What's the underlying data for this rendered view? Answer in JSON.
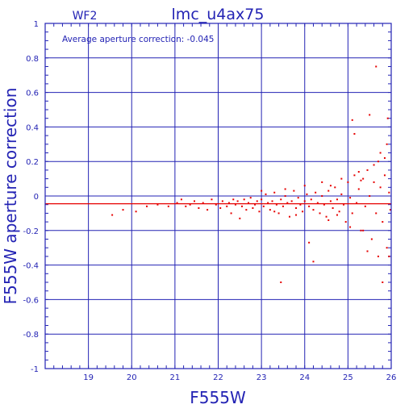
{
  "chart_data": {
    "type": "scatter",
    "panel_label": "WF2",
    "title": "lmc_u4ax75",
    "annotation": "Average aperture correction: -0.045",
    "xlabel": "F555W",
    "ylabel": "F555W aperture correction",
    "xlim": [
      18,
      26
    ],
    "ylim": [
      -1,
      1
    ],
    "x_ticks": [
      19,
      20,
      21,
      22,
      23,
      24,
      25,
      26
    ],
    "y_ticks": [
      -1,
      -0.8,
      -0.6,
      -0.4,
      -0.2,
      0,
      0.2,
      0.4,
      0.6,
      0.8,
      1
    ],
    "y_tick_labels": [
      "-1",
      "-0.8",
      "-0.6",
      "-0.4",
      "-0.2",
      "0",
      "0.2",
      "0.4",
      "0.6",
      "0.8",
      "1"
    ],
    "grid": true,
    "reference_line": {
      "y": -0.045,
      "label": "average"
    },
    "colors": {
      "axes": "#2323b4",
      "points": "#e60000",
      "reference_line": "#e60000",
      "background": "#ffffff"
    },
    "series": [
      {
        "points": [
          [
            19.55,
            -0.11
          ],
          [
            19.8,
            -0.08
          ],
          [
            20.1,
            -0.09
          ],
          [
            20.35,
            -0.06
          ],
          [
            20.6,
            -0.05
          ],
          [
            20.85,
            -0.06
          ],
          [
            21.05,
            -0.04
          ],
          [
            21.15,
            -0.02
          ],
          [
            21.25,
            -0.06
          ],
          [
            21.35,
            -0.05
          ],
          [
            21.45,
            -0.03
          ],
          [
            21.55,
            -0.07
          ],
          [
            21.65,
            -0.04
          ],
          [
            21.75,
            -0.08
          ],
          [
            21.85,
            -0.02
          ],
          [
            21.95,
            -0.05
          ],
          [
            22.05,
            -0.07
          ],
          [
            22.1,
            -0.03
          ],
          [
            22.2,
            -0.06
          ],
          [
            22.25,
            -0.04
          ],
          [
            22.3,
            -0.1
          ],
          [
            22.35,
            -0.02
          ],
          [
            22.4,
            -0.05
          ],
          [
            22.45,
            -0.03
          ],
          [
            22.5,
            -0.13
          ],
          [
            22.55,
            -0.06
          ],
          [
            22.6,
            -0.02
          ],
          [
            22.65,
            -0.08
          ],
          [
            22.7,
            -0.04
          ],
          [
            22.75,
            -0.01
          ],
          [
            22.8,
            -0.07
          ],
          [
            22.85,
            -0.05
          ],
          [
            22.9,
            -0.03
          ],
          [
            22.95,
            -0.09
          ],
          [
            23.0,
            -0.02
          ],
          [
            23.05,
            -0.06
          ],
          [
            23.1,
            0.01
          ],
          [
            23.15,
            -0.04
          ],
          [
            23.2,
            -0.08
          ],
          [
            23.25,
            -0.03
          ],
          [
            23.3,
            0.02
          ],
          [
            23.35,
            -0.05
          ],
          [
            23.4,
            -0.1
          ],
          [
            23.45,
            -0.02
          ],
          [
            23.5,
            -0.06
          ],
          [
            23.55,
            0.0
          ],
          [
            23.6,
            -0.04
          ],
          [
            23.65,
            -0.12
          ],
          [
            23.7,
            -0.03
          ],
          [
            23.75,
            0.03
          ],
          [
            23.8,
            -0.07
          ],
          [
            23.85,
            -0.01
          ],
          [
            23.9,
            -0.05
          ],
          [
            23.95,
            -0.09
          ],
          [
            24.0,
            -0.03
          ],
          [
            24.05,
            0.01
          ],
          [
            24.1,
            -0.06
          ],
          [
            24.15,
            -0.02
          ],
          [
            24.2,
            -0.08
          ],
          [
            24.25,
            0.02
          ],
          [
            24.3,
            -0.04
          ],
          [
            24.35,
            -0.1
          ],
          [
            24.4,
            0.0
          ],
          [
            24.45,
            -0.05
          ],
          [
            24.5,
            -0.12
          ],
          [
            24.55,
            0.03
          ],
          [
            24.6,
            -0.03
          ],
          [
            24.65,
            -0.07
          ],
          [
            24.7,
            0.05
          ],
          [
            24.75,
            -0.02
          ],
          [
            24.8,
            -0.09
          ],
          [
            24.85,
            0.01
          ],
          [
            24.9,
            -0.05
          ],
          [
            24.95,
            -0.15
          ],
          [
            25.0,
            0.08
          ],
          [
            25.05,
            -0.01
          ],
          [
            25.1,
            -0.1
          ],
          [
            25.15,
            0.12
          ],
          [
            25.2,
            -0.04
          ],
          [
            25.25,
            0.04
          ],
          [
            25.3,
            -0.2
          ],
          [
            25.35,
            0.1
          ],
          [
            25.4,
            -0.06
          ],
          [
            25.45,
            0.15
          ],
          [
            25.5,
            0.0
          ],
          [
            25.55,
            -0.25
          ],
          [
            25.6,
            0.08
          ],
          [
            25.65,
            -0.1
          ],
          [
            25.7,
            0.2
          ],
          [
            25.75,
            0.05
          ],
          [
            25.8,
            -0.15
          ],
          [
            25.85,
            0.12
          ],
          [
            25.9,
            -0.3
          ],
          [
            25.95,
            0.02
          ],
          [
            25.98,
            -0.08
          ],
          [
            23.45,
            -0.5
          ],
          [
            24.2,
            -0.38
          ],
          [
            24.1,
            -0.27
          ],
          [
            25.65,
            0.75
          ],
          [
            25.8,
            -0.5
          ],
          [
            25.92,
            0.45
          ],
          [
            25.5,
            0.47
          ],
          [
            25.1,
            0.44
          ],
          [
            25.15,
            0.36
          ],
          [
            25.9,
            0.3
          ],
          [
            25.7,
            -0.35
          ],
          [
            25.95,
            -0.35
          ],
          [
            25.45,
            -0.32
          ],
          [
            25.35,
            -0.2
          ],
          [
            25.85,
            0.22
          ],
          [
            23.0,
            0.03
          ],
          [
            23.55,
            0.04
          ],
          [
            24.0,
            0.06
          ],
          [
            24.4,
            0.08
          ],
          [
            24.6,
            0.06
          ],
          [
            24.85,
            0.1
          ],
          [
            25.25,
            0.14
          ],
          [
            25.6,
            0.18
          ],
          [
            25.75,
            0.25
          ],
          [
            25.3,
            0.09
          ],
          [
            23.3,
            -0.09
          ],
          [
            23.8,
            -0.11
          ],
          [
            24.55,
            -0.14
          ],
          [
            24.75,
            -0.11
          ],
          [
            25.05,
            -0.18
          ]
        ]
      }
    ]
  }
}
